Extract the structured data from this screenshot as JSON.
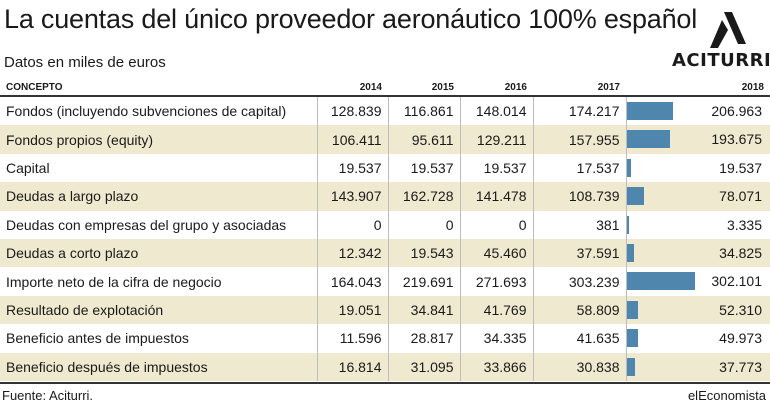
{
  "title": "La cuentas del único proveedor aeronáutico 100% español",
  "subtitle": "Datos en miles de euros",
  "logo_text": "ACITURRI",
  "source": "Fuente: Aciturri.",
  "brand": "elEconomista",
  "table": {
    "headers": [
      "CONCEPTO",
      "2014",
      "2015",
      "2016",
      "2017",
      "2018"
    ]
  },
  "chart_data": {
    "type": "table",
    "title": "La cuentas del único proveedor aeronáutico 100% español",
    "subtitle": "Datos en miles de euros",
    "columns": [
      "2014",
      "2015",
      "2016",
      "2017",
      "2018"
    ],
    "bar_column": "2018",
    "bar_color": "#4e86ad",
    "alt_row_color": "#efe9cf",
    "rows": [
      {
        "label": "Fondos (incluyendo subvenciones de capital)",
        "values": [
          "128.839",
          "116.861",
          "148.014",
          "174.217",
          "206.963"
        ],
        "v2018": 206963
      },
      {
        "label": "Fondos propios (equity)",
        "values": [
          "106.411",
          "95.611",
          "129.211",
          "157.955",
          "193.675"
        ],
        "v2018": 193675
      },
      {
        "label": "Capital",
        "values": [
          "19.537",
          "19.537",
          "19.537",
          "17.537",
          "19.537"
        ],
        "v2018": 19537
      },
      {
        "label": "Deudas a largo plazo",
        "values": [
          "143.907",
          "162.728",
          "141.478",
          "108.739",
          "78.071"
        ],
        "v2018": 78071
      },
      {
        "label": "Deudas con empresas del grupo y asociadas",
        "values": [
          "0",
          "0",
          "0",
          "381",
          "3.335"
        ],
        "v2018": 3335
      },
      {
        "label": "Deudas a corto plazo",
        "values": [
          "12.342",
          "19.543",
          "45.460",
          "37.591",
          "34.825"
        ],
        "v2018": 34825
      },
      {
        "label": "Importe neto de la cifra de negocio",
        "values": [
          "164.043",
          "219.691",
          "271.693",
          "303.239",
          "302.101"
        ],
        "v2018": 302101
      },
      {
        "label": "Resultado de explotación",
        "values": [
          "19.051",
          "34.841",
          "41.769",
          "58.809",
          "52.310"
        ],
        "v2018": 52310
      },
      {
        "label": "Beneficio antes de impuestos",
        "values": [
          "11.596",
          "28.817",
          "34.335",
          "41.635",
          "49.973"
        ],
        "v2018": 49973
      },
      {
        "label": "Beneficio después de impuestos",
        "values": [
          "16.814",
          "31.095",
          "33.866",
          "30.838",
          "37.773"
        ],
        "v2018": 37773
      }
    ]
  }
}
